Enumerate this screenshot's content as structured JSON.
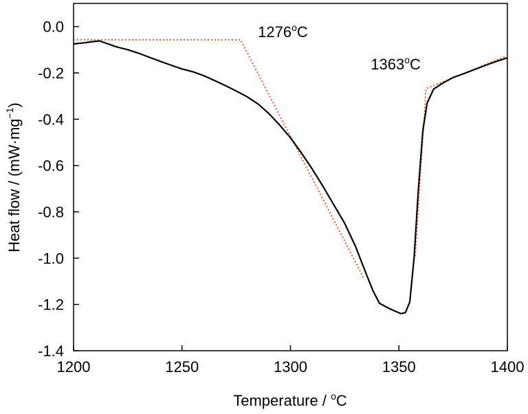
{
  "chart_data": {
    "type": "line",
    "title": "",
    "xlabel": {
      "prefix": "Temperature / ",
      "sup": "o",
      "suffix": "C"
    },
    "ylabel": {
      "prefix": "Heat flow / (mW·mg",
      "sup": "−1",
      "suffix": ")"
    },
    "xlim": [
      1200,
      1400
    ],
    "ylim": [
      -1.4,
      0.1
    ],
    "x_ticks": [
      1200,
      1250,
      1300,
      1350,
      1400
    ],
    "x_tick_labels": [
      "1200",
      "1250",
      "1300",
      "1350",
      "1400"
    ],
    "y_ticks": [
      0.0,
      -0.2,
      -0.4,
      -0.6,
      -0.8,
      -1.0,
      -1.2,
      -1.4
    ],
    "y_tick_labels": [
      "0.0",
      "-0.2",
      "-0.4",
      "-0.6",
      "-0.8",
      "-1.0",
      "-1.2",
      "-1.4"
    ],
    "grid": false,
    "legend": "none",
    "series": [
      {
        "color": "#000000",
        "style": "solid",
        "points": [
          [
            1200,
            -0.075
          ],
          [
            1205,
            -0.07
          ],
          [
            1208,
            -0.066
          ],
          [
            1212,
            -0.062
          ],
          [
            1215,
            -0.072
          ],
          [
            1220,
            -0.088
          ],
          [
            1225,
            -0.1
          ],
          [
            1230,
            -0.115
          ],
          [
            1235,
            -0.133
          ],
          [
            1240,
            -0.15
          ],
          [
            1245,
            -0.167
          ],
          [
            1250,
            -0.183
          ],
          [
            1255,
            -0.195
          ],
          [
            1260,
            -0.212
          ],
          [
            1265,
            -0.233
          ],
          [
            1270,
            -0.255
          ],
          [
            1275,
            -0.278
          ],
          [
            1280,
            -0.303
          ],
          [
            1285,
            -0.334
          ],
          [
            1290,
            -0.375
          ],
          [
            1295,
            -0.425
          ],
          [
            1300,
            -0.48
          ],
          [
            1305,
            -0.545
          ],
          [
            1310,
            -0.615
          ],
          [
            1315,
            -0.69
          ],
          [
            1320,
            -0.77
          ],
          [
            1325,
            -0.85
          ],
          [
            1330,
            -0.95
          ],
          [
            1335,
            -1.07
          ],
          [
            1338,
            -1.14
          ],
          [
            1341,
            -1.195
          ],
          [
            1345,
            -1.215
          ],
          [
            1348,
            -1.228
          ],
          [
            1351,
            -1.24
          ],
          [
            1353,
            -1.235
          ],
          [
            1355,
            -1.19
          ],
          [
            1357,
            -1.0
          ],
          [
            1359,
            -0.7
          ],
          [
            1361,
            -0.45
          ],
          [
            1363,
            -0.33
          ],
          [
            1366,
            -0.27
          ],
          [
            1370,
            -0.245
          ],
          [
            1375,
            -0.22
          ],
          [
            1380,
            -0.203
          ],
          [
            1385,
            -0.185
          ],
          [
            1390,
            -0.167
          ],
          [
            1395,
            -0.15
          ],
          [
            1400,
            -0.135
          ]
        ]
      }
    ],
    "tangent_lines": [
      {
        "color": "#e8562a",
        "style": "dotted",
        "points": [
          [
            1200,
            -0.057
          ],
          [
            1277,
            -0.057
          ],
          [
            1334,
            -1.09
          ]
        ]
      },
      {
        "color": "#e8562a",
        "style": "dotted",
        "points": [
          [
            1357.5,
            -0.99
          ],
          [
            1362.5,
            -0.268
          ],
          [
            1400,
            -0.125
          ]
        ]
      }
    ],
    "annotations": [
      {
        "id": "onset",
        "value": "1276",
        "sup": "o",
        "unit": "C",
        "x": 1285,
        "y": -0.045
      },
      {
        "id": "endset",
        "value": "1363",
        "sup": "o",
        "unit": "C",
        "x": 1337,
        "y": -0.185
      }
    ]
  }
}
